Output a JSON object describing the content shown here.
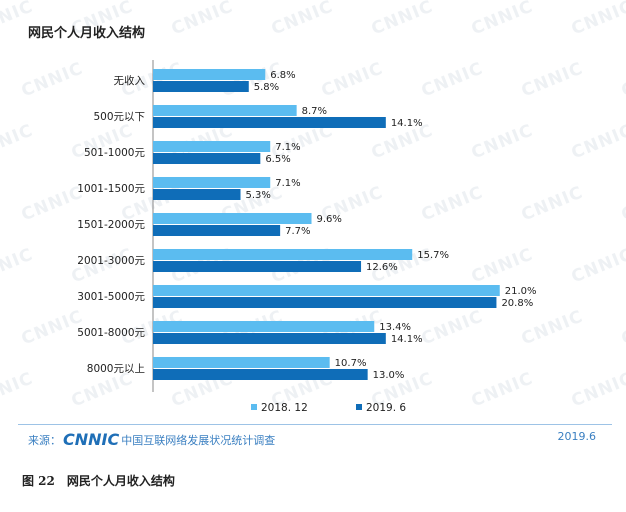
{
  "chart_data": {
    "type": "bar",
    "orientation": "horizontal",
    "title": "网民个人月收入结构",
    "categories": [
      "无收入",
      "500元以下",
      "501-1000元",
      "1001-1500元",
      "1501-2000元",
      "2001-3000元",
      "3001-5000元",
      "5001-8000元",
      "8000元以上"
    ],
    "series": [
      {
        "name": "2018. 12",
        "color": "#5bbcf0",
        "values": [
          6.8,
          8.7,
          7.1,
          7.1,
          9.6,
          15.7,
          21.0,
          13.4,
          10.7
        ],
        "labels": [
          "6.8%",
          "8.7%",
          "7.1%",
          "7.1%",
          "9.6%",
          "15.7%",
          "21.0%",
          "13.4%",
          "10.7%"
        ]
      },
      {
        "name": "2019. 6",
        "color": "#0f6db8",
        "values": [
          5.8,
          14.1,
          6.5,
          5.3,
          7.7,
          12.6,
          20.8,
          14.1,
          13.0
        ],
        "labels": [
          "5.8%",
          "14.1%",
          "6.5%",
          "5.3%",
          "7.7%",
          "12.6%",
          "20.8%",
          "14.1%",
          "13.0%"
        ]
      }
    ],
    "xlim": [
      0,
      21.5
    ],
    "legend_position": "bottom",
    "grid": false
  },
  "watermark": "CNNIC",
  "source": {
    "prefix": "来源：",
    "logo": "CNNIC",
    "org": "中国互联网络发展状况统计调查",
    "date": "2019.6"
  },
  "caption": "图 22　网民个人月收入结构"
}
